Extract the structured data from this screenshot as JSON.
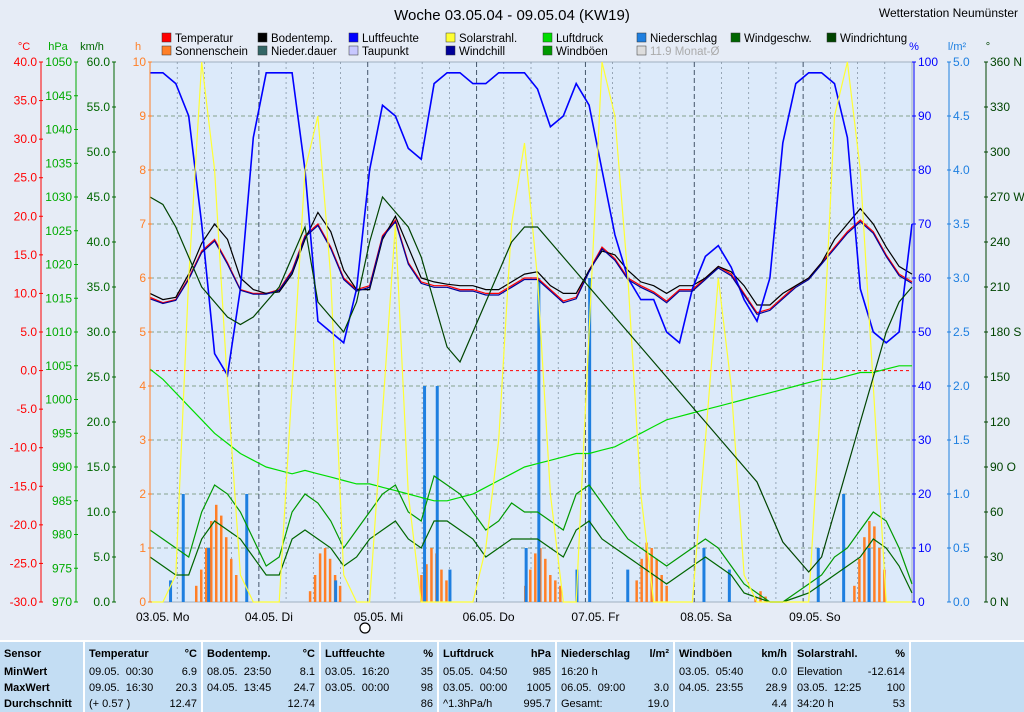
{
  "chart_data": {
    "type": "line",
    "title": "Woche 03.05.04 - 09.05.04 (KW19)",
    "station": "Wetterstation Neumünster",
    "x_labels": [
      "03.05. Mo",
      "04.05. Di",
      "05.05. Mi",
      "06.05. Do",
      "07.05. Fr",
      "08.05. Sa",
      "09.05. So"
    ],
    "legend": [
      {
        "name": "Temperatur",
        "color": "#ff0000"
      },
      {
        "name": "Sonnenschein",
        "color": "#ff7f27"
      },
      {
        "name": "Bodentemp.",
        "color": "#000000"
      },
      {
        "name": "Nieder.dauer",
        "color": "#336666"
      },
      {
        "name": "Luftfeuchte",
        "color": "#0000ff"
      },
      {
        "name": "Taupunkt",
        "color": "#c8c8ff"
      },
      {
        "name": "Solarstrahl.",
        "color": "#ffff33"
      },
      {
        "name": "Windchill",
        "color": "#000099"
      },
      {
        "name": "Luftdruck",
        "color": "#00dd00"
      },
      {
        "name": "Windböen",
        "color": "#009900"
      },
      {
        "name": "Niederschlag",
        "color": "#1e7fe0"
      },
      {
        "name": "11.9 Monat-Ø",
        "color": "#dddddd"
      },
      {
        "name": "Windgeschw.",
        "color": "#006600"
      },
      {
        "name": "Windrichtung",
        "color": "#004400"
      }
    ],
    "axes": {
      "temp": {
        "unit": "°C",
        "min": -30,
        "max": 40,
        "ticks": [
          "40.0",
          "35.0",
          "30.0",
          "25.0",
          "20.0",
          "15.0",
          "10.0",
          "5.0",
          "0.0",
          "-5.0",
          "-10.0",
          "-15.0",
          "-20.0",
          "-25.0",
          "-30.0"
        ],
        "color": "#ff0000"
      },
      "pressure": {
        "unit": "hPa",
        "min": 970,
        "max": 1050,
        "ticks": [
          "1050",
          "1045",
          "1040",
          "1035",
          "1030",
          "1025",
          "1020",
          "1015",
          "1010",
          "1005",
          "1000",
          "995",
          "990",
          "985",
          "980",
          "975",
          "970"
        ],
        "color": "#00aa00"
      },
      "wind": {
        "unit": "km/h",
        "min": 0,
        "max": 60,
        "ticks": [
          "60.0",
          "55.0",
          "50.0",
          "45.0",
          "40.0",
          "35.0",
          "30.0",
          "25.0",
          "20.0",
          "15.0",
          "10.0",
          "5.0",
          "0.0"
        ],
        "color": "#006600"
      },
      "hours": {
        "unit": "h",
        "min": 0,
        "max": 10,
        "ticks": [
          "10",
          "9",
          "8",
          "7",
          "6",
          "5",
          "4",
          "3",
          "2",
          "1",
          "0"
        ],
        "color": "#ff7f27"
      },
      "humidity": {
        "unit": "%",
        "min": 0,
        "max": 100,
        "ticks": [
          "100",
          "90",
          "80",
          "70",
          "60",
          "50",
          "40",
          "30",
          "20",
          "10",
          "0"
        ],
        "color": "#0000ff"
      },
      "rain": {
        "unit": "l/m²",
        "min": 0,
        "max": 5,
        "ticks": [
          "5.0",
          "4.5",
          "4.0",
          "3.5",
          "3.0",
          "2.5",
          "2.0",
          "1.5",
          "1.0",
          "0.5",
          "0.0"
        ],
        "color": "#1e7fe0"
      },
      "direction": {
        "unit": "°",
        "min": 0,
        "max": 360,
        "ticks": [
          "360 N",
          "330",
          "300",
          "270 W",
          "240",
          "210",
          "180 S",
          "150",
          "120",
          "90 O",
          "60",
          "30",
          "0 N"
        ],
        "color": "#004400"
      }
    },
    "series": [
      {
        "name": "Temperatur",
        "axis": "temp",
        "color": "#ff0000",
        "values": [
          9.5,
          8.8,
          9.2,
          12,
          15.5,
          17,
          14,
          10.5,
          10,
          10,
          10.5,
          13,
          17.5,
          19,
          16,
          12,
          10.5,
          11,
          17.5,
          19.5,
          14,
          11.5,
          11,
          11,
          10.5,
          10.5,
          10,
          10,
          11,
          12,
          12,
          10.5,
          9,
          9.5,
          13,
          16,
          14.5,
          12,
          11,
          10.2,
          9,
          10.5,
          10.5,
          12,
          13.5,
          12.5,
          10,
          7.5,
          8,
          9.5,
          11,
          12,
          14,
          16,
          18,
          19.5,
          18,
          15,
          12.5,
          11.5
        ]
      },
      {
        "name": "Bodentemp.",
        "axis": "temp",
        "color": "#000000",
        "values": [
          10,
          9.2,
          9.5,
          12.5,
          16.5,
          19,
          17,
          12,
          10.5,
          10,
          10.2,
          12.5,
          17,
          20.5,
          18,
          13,
          10.5,
          10.5,
          17,
          20,
          16,
          12,
          11.5,
          11.2,
          11,
          11,
          10.5,
          10.5,
          11.5,
          12.5,
          12.8,
          11,
          10,
          10,
          13,
          15.5,
          15,
          13,
          11.5,
          11,
          10,
          11,
          11,
          12,
          13.5,
          12.8,
          11,
          8.5,
          8.5,
          10,
          11,
          12,
          14,
          17,
          19,
          21,
          19,
          16,
          13.5,
          12.5
        ]
      },
      {
        "name": "Luftfeuchte",
        "axis": "humidity",
        "color": "#0000ff",
        "values": [
          98,
          98,
          96,
          90,
          70,
          46,
          42,
          58,
          86,
          98,
          98,
          98,
          80,
          52,
          50,
          48,
          58,
          80,
          92,
          90,
          84,
          82,
          96,
          98,
          98,
          96,
          96,
          98,
          98,
          98,
          95,
          88,
          90,
          96,
          92,
          80,
          68,
          60,
          56,
          56,
          50,
          48,
          58,
          64,
          66,
          62,
          56,
          52,
          60,
          85,
          96,
          98,
          98,
          96,
          86,
          58,
          50,
          48,
          50,
          70
        ]
      },
      {
        "name": "Windchill",
        "axis": "temp",
        "color": "#000099",
        "values": [
          9.3,
          8.7,
          9.1,
          11.8,
          15.3,
          16.8,
          13.8,
          10.4,
          9.9,
          9.9,
          10.4,
          12.8,
          17.3,
          18.8,
          15.8,
          11.8,
          10.3,
          10.8,
          17.3,
          19.3,
          13.8,
          11.3,
          10.8,
          10.8,
          10.3,
          10.3,
          9.8,
          9.8,
          10.8,
          11.8,
          11.8,
          10.3,
          8.8,
          9.3,
          12.8,
          15.8,
          14.3,
          11.8,
          10.8,
          10,
          8.8,
          10.3,
          10.3,
          11.8,
          13.3,
          12.3,
          9.8,
          7.3,
          7.8,
          9.3,
          10.8,
          11.8,
          13.8,
          15.8,
          17.8,
          19.3,
          17.8,
          14.8,
          12.3,
          11.3
        ]
      },
      {
        "name": "Luftdruck",
        "axis": "pressure",
        "color": "#00dd00",
        "values": [
          1004.5,
          1003,
          1001,
          999,
          997,
          995,
          993.5,
          992,
          991,
          990,
          989.5,
          989,
          989.5,
          989,
          988.5,
          988,
          987.5,
          987.5,
          987,
          986.5,
          986,
          985.5,
          985,
          985,
          985.5,
          986,
          987,
          988,
          989,
          990,
          990.5,
          991,
          991.5,
          992,
          992,
          992.5,
          993,
          994,
          995,
          996,
          997,
          997.5,
          998,
          998.5,
          999,
          999.5,
          1000,
          1000.5,
          1001,
          1001.5,
          1002,
          1002.5,
          1003,
          1003,
          1003.5,
          1004,
          1004,
          1004.5,
          1005,
          1005
        ]
      },
      {
        "name": "Windböen",
        "axis": "wind",
        "color": "#009900",
        "values": [
          8,
          7,
          6,
          5,
          10,
          13,
          12,
          10,
          7,
          4,
          5,
          10,
          12,
          11,
          9,
          6,
          8,
          10,
          12,
          13,
          10,
          9,
          14,
          13,
          12,
          10,
          8,
          9,
          11,
          10,
          10,
          9,
          8,
          12,
          13,
          11,
          9,
          7,
          6,
          5,
          4,
          5,
          6,
          7,
          6,
          4,
          2,
          1,
          0,
          0,
          1,
          2,
          3,
          5,
          6,
          8,
          10,
          9,
          6,
          2
        ]
      },
      {
        "name": "Windgeschw.",
        "axis": "wind",
        "color": "#006600",
        "values": [
          5,
          4,
          3,
          3,
          7,
          9,
          8,
          7,
          5,
          3,
          3,
          7,
          8,
          7,
          6,
          4,
          5,
          7,
          8,
          9,
          7,
          6,
          9,
          9,
          8,
          7,
          5,
          6,
          7,
          7,
          7,
          6,
          5,
          8,
          9,
          7,
          6,
          5,
          4,
          3,
          2,
          3,
          4,
          5,
          4,
          3,
          1,
          0.5,
          0,
          0,
          0.5,
          1,
          2,
          3,
          4,
          5,
          7,
          6,
          4,
          1
        ]
      },
      {
        "name": "Solarstrahl.",
        "axis": "humidity",
        "color": "#ffff33",
        "values": [
          0,
          0,
          5,
          60,
          100,
          80,
          40,
          5,
          0,
          0,
          0,
          40,
          80,
          90,
          60,
          5,
          0,
          0,
          35,
          70,
          20,
          0,
          0,
          0,
          0,
          0,
          10,
          30,
          70,
          85,
          60,
          20,
          0,
          0,
          50,
          100,
          90,
          60,
          20,
          0,
          0,
          0,
          0,
          30,
          60,
          40,
          5,
          0,
          0,
          0,
          0,
          0,
          40,
          90,
          100,
          80,
          40,
          0,
          0,
          0
        ]
      },
      {
        "name": "Windrichtung",
        "axis": "direction",
        "color": "#004400",
        "values": [
          270,
          265,
          250,
          230,
          210,
          200,
          190,
          185,
          190,
          200,
          210,
          230,
          250,
          200,
          190,
          180,
          200,
          240,
          270,
          260,
          250,
          230,
          200,
          170,
          160,
          180,
          200,
          220,
          240,
          250,
          250,
          240,
          230,
          220,
          210,
          200,
          190,
          180,
          170,
          160,
          150,
          140,
          130,
          120,
          110,
          100,
          90,
          80,
          60,
          40,
          30,
          20,
          30,
          60,
          90,
          120,
          150,
          180,
          200,
          210
        ]
      }
    ],
    "sunshine_bars": {
      "name": "Sonnenschein",
      "axis": "hours",
      "days": [
        [
          0.3,
          0.6,
          1.0,
          1.5,
          1.8,
          1.6,
          1.2,
          0.8,
          0.5
        ],
        [
          0.2,
          0.5,
          0.9,
          1.0,
          0.8,
          0.5,
          0.3
        ],
        [
          0.5,
          0.7,
          1.0,
          0.9,
          0.6,
          0.4
        ],
        [
          0.3,
          0.6,
          0.9,
          1.0,
          0.8,
          0.5,
          0.4,
          0.3
        ],
        [
          0.4,
          0.8,
          1.1,
          1.0,
          0.8,
          0.5,
          0.3
        ],
        [
          0.1,
          0.2,
          0.1
        ],
        [
          0.3,
          0.8,
          1.2,
          1.5,
          1.4,
          1.0,
          0.6
        ]
      ]
    },
    "rain_bars": {
      "name": "Niederschlag",
      "axis": "rain",
      "values": [
        0,
        0.2,
        1.0,
        0,
        0.5,
        0,
        0,
        1.0,
        0,
        0,
        0,
        0,
        0,
        0,
        0.2,
        0,
        0,
        0,
        0,
        0,
        0,
        2.0,
        2.0,
        0.3,
        0,
        0,
        0,
        0,
        0,
        0.5,
        3.0,
        0,
        0,
        0.3,
        3.0,
        0,
        0,
        0.3,
        0,
        0,
        0,
        0,
        0,
        0.5,
        0,
        0.3,
        0,
        0,
        0,
        0,
        0,
        0,
        0.5,
        0,
        1.0,
        0,
        0.5,
        0,
        0,
        0
      ]
    },
    "zero_line": 0,
    "grid": true
  },
  "stats": {
    "columns": [
      {
        "header": "Sensor",
        "unit": "",
        "rows": [
          [
            "MinWert",
            ""
          ],
          [
            "MaxWert",
            ""
          ],
          [
            "Durchschnitt",
            ""
          ]
        ]
      },
      {
        "header": "Temperatur",
        "unit": "°C",
        "rows": [
          [
            "09.05.  00:30",
            "6.9"
          ],
          [
            "09.05.  16:30",
            "20.3"
          ],
          [
            "(+ 0.57 )",
            "12.47"
          ]
        ]
      },
      {
        "header": "Bodentemp.",
        "unit": "°C",
        "rows": [
          [
            "08.05.  23:50",
            "8.1"
          ],
          [
            "04.05.  13:45",
            "24.7"
          ],
          [
            "",
            "12.74"
          ]
        ]
      },
      {
        "header": "Luftfeuchte",
        "unit": "%",
        "rows": [
          [
            "03.05.  16:20",
            "35"
          ],
          [
            "03.05.  00:00",
            "98"
          ],
          [
            "",
            "86"
          ]
        ]
      },
      {
        "header": "Luftdruck",
        "unit": "hPa",
        "rows": [
          [
            "05.05.  04:50",
            "985"
          ],
          [
            "03.05.  00:00",
            "1005"
          ],
          [
            "^1.3hPa/h",
            "995.7"
          ]
        ]
      },
      {
        "header": "Niederschlag",
        "unit": "l/m²",
        "rows": [
          [
            "16:20 h",
            ""
          ],
          [
            "06.05.  09:00",
            "3.0"
          ],
          [
            "Gesamt:",
            "19.0"
          ]
        ]
      },
      {
        "header": "Windböen",
        "unit": "km/h",
        "rows": [
          [
            "03.05.  05:40",
            "0.0"
          ],
          [
            "04.05.  23:55",
            "28.9"
          ],
          [
            "",
            "4.4"
          ]
        ]
      },
      {
        "header": "Solarstrahl.",
        "unit": "%",
        "rows": [
          [
            "Elevation",
            "-12.614"
          ],
          [
            "03.05.  12:25",
            "100"
          ],
          [
            "34:20 h",
            "53"
          ]
        ]
      }
    ]
  }
}
